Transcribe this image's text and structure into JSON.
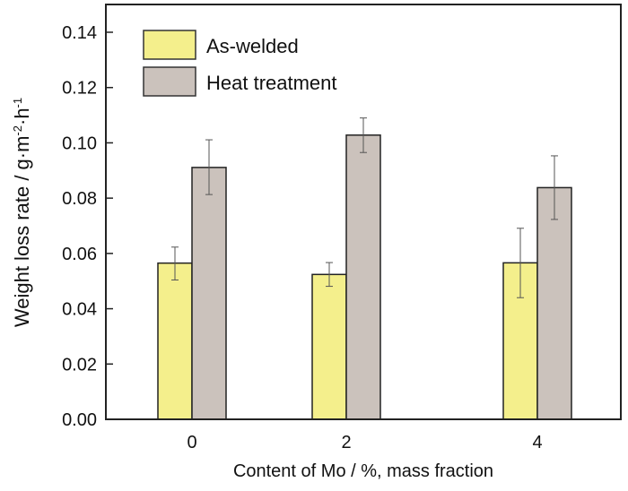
{
  "chart_data": {
    "type": "bar",
    "title": "",
    "xlabel": "Content of Mo / %, mass fraction",
    "ylabel": "Weight loss rate / g·m",
    "ylabel_sup1": "-2",
    "ylabel_mid": "·h",
    "ylabel_sup2": "-1",
    "categories": [
      "0",
      "2",
      "4"
    ],
    "ylim": [
      0,
      0.15
    ],
    "yticks": [
      "0.00",
      "0.02",
      "0.04",
      "0.06",
      "0.08",
      "0.10",
      "0.12",
      "0.14"
    ],
    "grid": false,
    "legend_position": "top-left",
    "series": [
      {
        "name": "As-welded",
        "color": "#f4ef8c",
        "values": [
          0.0565,
          0.0524,
          0.0566
        ],
        "error_low": [
          0.0504,
          0.0481,
          0.044
        ],
        "error_high": [
          0.0623,
          0.0567,
          0.0691
        ]
      },
      {
        "name": "Heat treatment",
        "color": "#cbc2bc",
        "values": [
          0.0911,
          0.1028,
          0.0838
        ],
        "error_low": [
          0.0813,
          0.0965,
          0.0723
        ],
        "error_high": [
          0.1011,
          0.109,
          0.0953
        ]
      }
    ]
  }
}
